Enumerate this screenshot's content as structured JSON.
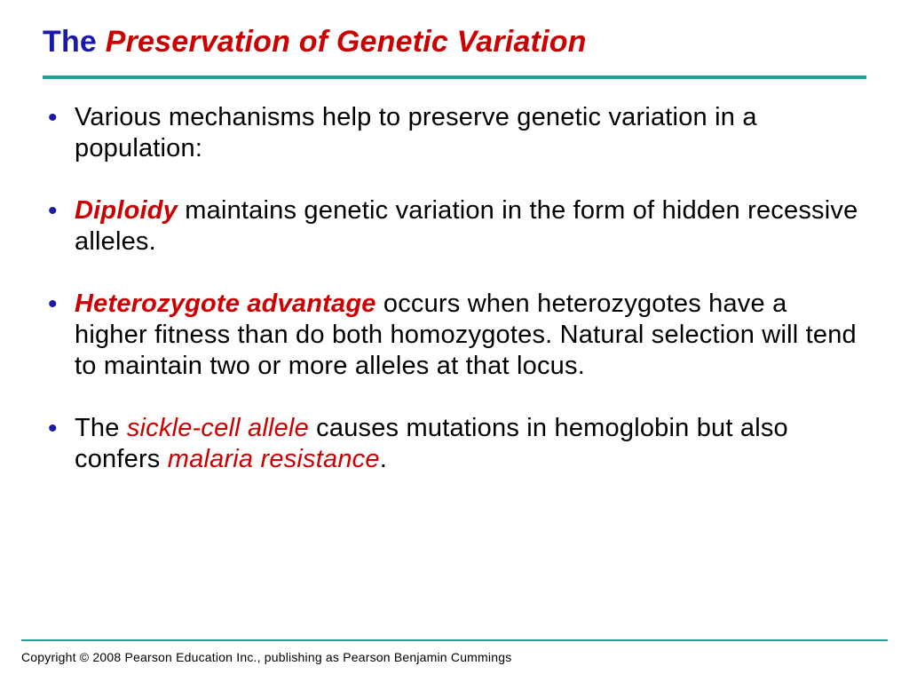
{
  "title": {
    "part1": "The ",
    "part2": "Preservation of Genetic Variation",
    "color_blue": "#1a1aa8",
    "color_red": "#cc0000",
    "fontsize": 34
  },
  "divider": {
    "color": "#2a9d9d",
    "top_height": 4,
    "bottom_height": 2
  },
  "bullets": [
    {
      "segments": [
        {
          "text": "Various mechanisms help to preserve genetic variation in a population:",
          "style": "plain"
        }
      ]
    },
    {
      "segments": [
        {
          "text": "Diploidy",
          "style": "red-bold-italic"
        },
        {
          "text": " maintains genetic variation in the form of hidden recessive alleles.",
          "style": "plain"
        }
      ]
    },
    {
      "segments": [
        {
          "text": "Heterozygote advantage",
          "style": "red-bold-italic"
        },
        {
          "text": " occurs when heterozygotes have a higher fitness than do both homozygotes. Natural selection will tend to maintain two or more alleles at that locus.",
          "style": "plain"
        }
      ]
    },
    {
      "segments": [
        {
          "text": "The ",
          "style": "plain"
        },
        {
          "text": "sickle-cell allele",
          "style": "red-italic"
        },
        {
          "text": " causes mutations in hemoglobin but also confers ",
          "style": "plain"
        },
        {
          "text": "malaria resistance",
          "style": "red-italic"
        },
        {
          "text": ".",
          "style": "plain"
        }
      ]
    }
  ],
  "bullet_style": {
    "fontsize": 29,
    "text_color": "#000000",
    "marker_color": "#1a1aa8",
    "red_color": "#cc0000"
  },
  "copyright": "Copyright © 2008 Pearson Education Inc., publishing  as Pearson Benjamin Cummings",
  "background_color": "#ffffff"
}
